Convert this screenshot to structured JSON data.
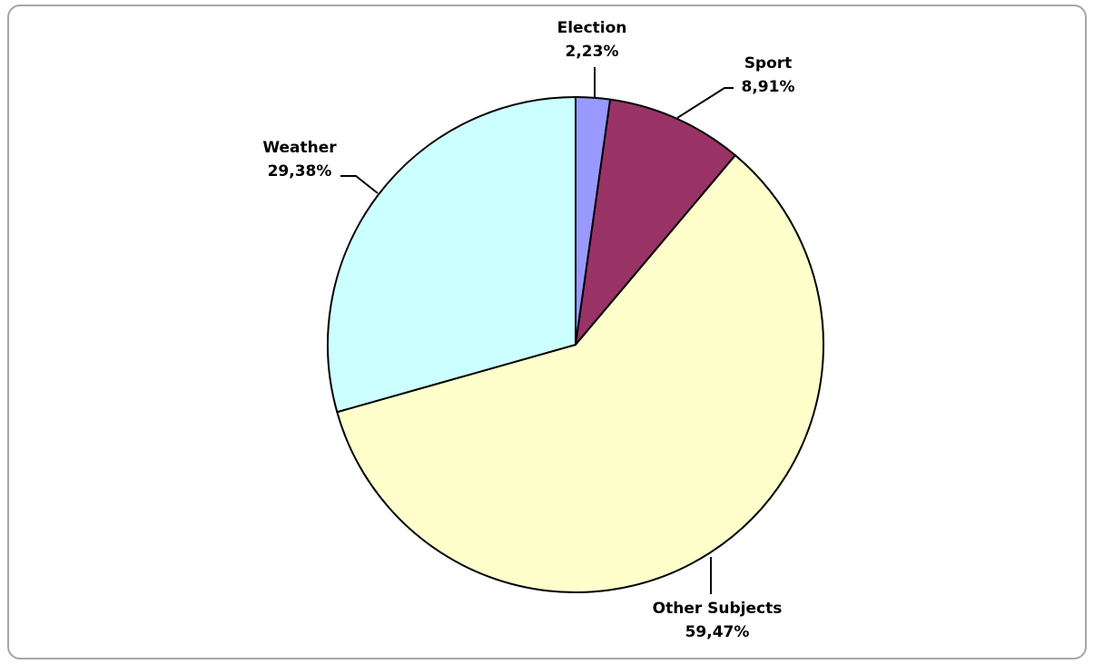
{
  "chart_data": {
    "type": "pie",
    "start_angle_deg": 0,
    "direction": "clockwise",
    "slices": [
      {
        "label": "Election",
        "value_text": "2,23%",
        "value": 2.23,
        "color": "#9999ff"
      },
      {
        "label": "Sport",
        "value_text": "8,91%",
        "value": 8.91,
        "color": "#993366"
      },
      {
        "label": "Other Subjects",
        "value_text": "59,47%",
        "value": 59.47,
        "color": "#ffffcc"
      },
      {
        "label": "Weather",
        "value_text": "29,38%",
        "value": 29.38,
        "color": "#ccffff"
      }
    ],
    "legend": "none",
    "border_color": "#a6a6a6"
  }
}
